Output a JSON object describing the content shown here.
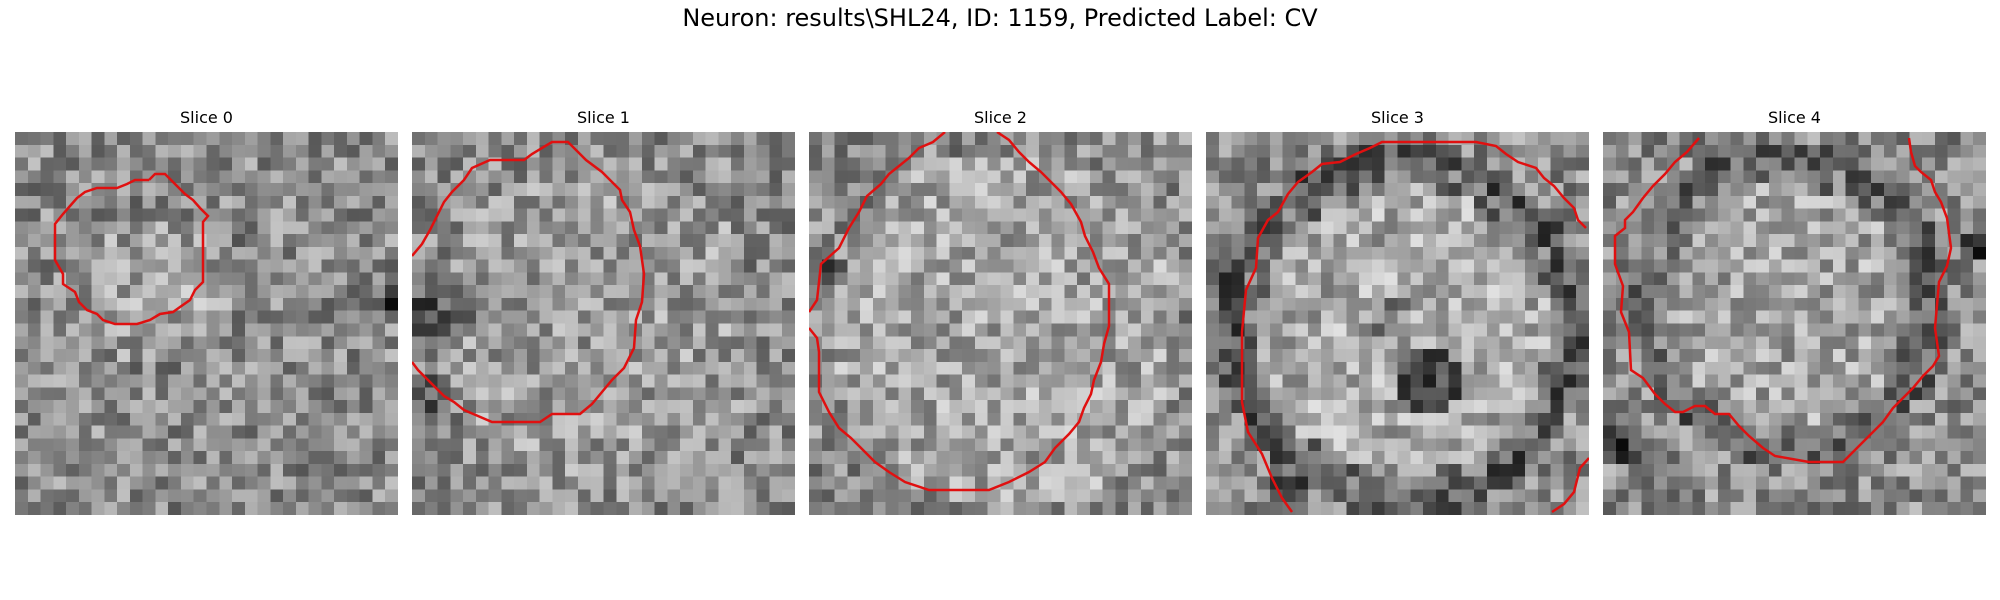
{
  "figure": {
    "title": "Neuron: results\\SHL24, ID: 1159, Predicted Label: CV",
    "contour_color": "#ff0000",
    "slices": [
      {
        "title": "Slice 0",
        "contour_label": "contour-slice-0"
      },
      {
        "title": "Slice 1",
        "contour_label": "contour-slice-1"
      },
      {
        "title": "Slice 2",
        "contour_label": "contour-slice-2"
      },
      {
        "title": "Slice 3",
        "contour_label": "contour-slice-3"
      },
      {
        "title": "Slice 4",
        "contour_label": "contour-slice-4"
      }
    ]
  }
}
